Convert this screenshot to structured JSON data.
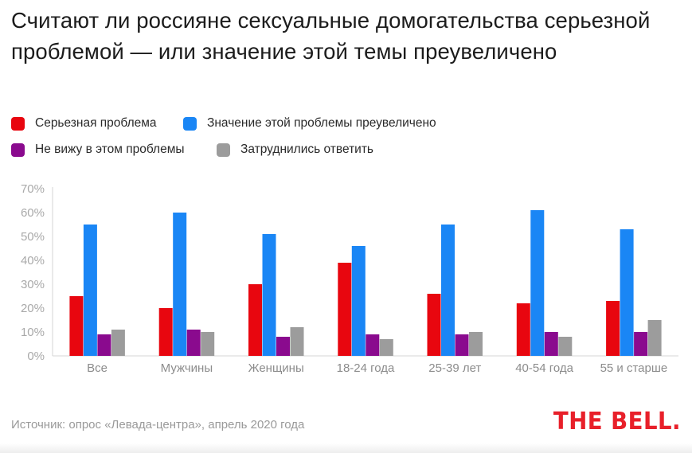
{
  "title": "Считают ли россияне сексуальные домогательства серьезной проблемой — или значение этой темы преувеличено",
  "legend": [
    {
      "label": "Серьезная проблема",
      "color": "#e8060f"
    },
    {
      "label": "Значение этой проблемы преувеличено",
      "color": "#1a86f5"
    },
    {
      "label": "Не вижу в этом проблемы",
      "color": "#8a0a8e"
    },
    {
      "label": "Затруднились ответить",
      "color": "#9c9c9c"
    }
  ],
  "source": "Источник: опрос «Левада-центра», апрель 2020 года",
  "logo": "THE BELL.",
  "chart_data": {
    "type": "bar",
    "title": "Считают ли россияне сексуальные домогательства серьезной проблемой — или значение этой темы преувеличено",
    "categories": [
      "Все",
      "Мужчины",
      "Женщины",
      "18-24 года",
      "25-39 лет",
      "40-54 года",
      "55 и старше"
    ],
    "series": [
      {
        "name": "Серьезная проблема",
        "color": "#e8060f",
        "values": [
          25,
          20,
          30,
          39,
          26,
          22,
          23
        ]
      },
      {
        "name": "Значение этой проблемы преувеличено",
        "color": "#1a86f5",
        "values": [
          55,
          60,
          51,
          46,
          55,
          61,
          53
        ]
      },
      {
        "name": "Не вижу в этом проблемы",
        "color": "#8a0a8e",
        "values": [
          9,
          11,
          8,
          9,
          9,
          10,
          10
        ]
      },
      {
        "name": "Затруднились ответить",
        "color": "#9c9c9c",
        "values": [
          11,
          10,
          12,
          7,
          10,
          8,
          15
        ]
      }
    ],
    "yticks": [
      "0%",
      "10%",
      "20%",
      "30%",
      "40%",
      "50%",
      "60%",
      "70%"
    ],
    "ylim": [
      0,
      70
    ],
    "grid": false,
    "legend_position": "top-left"
  }
}
